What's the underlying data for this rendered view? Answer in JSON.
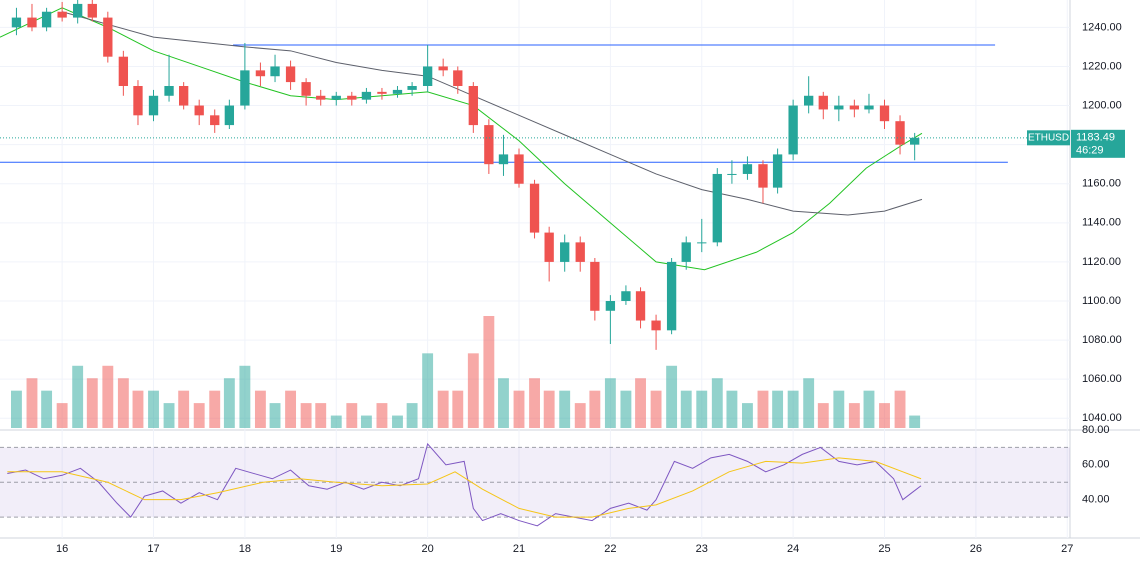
{
  "chart_data": [
    {
      "type": "candlestick",
      "symbol": "ETHUSD",
      "last_price": {
        "value": 1183.49,
        "label": "1183.49"
      },
      "countdown": "46:29",
      "up_color": "#26a69a",
      "down_color": "#ef5350",
      "xlim": [
        15.32,
        27.03
      ],
      "ylim": [
        1034,
        1254
      ],
      "xticks": [
        16,
        17,
        18,
        19,
        20,
        21,
        22,
        23,
        24,
        25,
        26,
        27
      ],
      "yticks": [
        {
          "value": 1040,
          "label": "1040.00"
        },
        {
          "value": 1060,
          "label": "1060.00"
        },
        {
          "value": 1080,
          "label": "1080.00"
        },
        {
          "value": 1100,
          "label": "1100.00"
        },
        {
          "value": 1120,
          "label": "1120.00"
        },
        {
          "value": 1140,
          "label": "1140.00"
        },
        {
          "value": 1160,
          "label": "1160.00"
        },
        {
          "value": 1180,
          "label": "1180.00"
        },
        {
          "value": 1200,
          "label": "1200.00"
        },
        {
          "value": 1220,
          "label": "1220.00"
        },
        {
          "value": 1240,
          "label": "1240.00"
        }
      ],
      "grid": true,
      "x": [
        15.5,
        15.67,
        15.83,
        16,
        16.17,
        16.33,
        16.5,
        16.67,
        16.83,
        17,
        17.17,
        17.33,
        17.5,
        17.67,
        17.83,
        18,
        18.17,
        18.33,
        18.5,
        18.67,
        18.83,
        19,
        19.17,
        19.33,
        19.5,
        19.67,
        19.83,
        20,
        20.17,
        20.33,
        20.5,
        20.67,
        20.83,
        21,
        21.17,
        21.33,
        21.5,
        21.67,
        21.83,
        22,
        22.17,
        22.33,
        22.5,
        22.67,
        22.83,
        23,
        23.17,
        23.33,
        23.5,
        23.67,
        23.83,
        24,
        24.17,
        24.33,
        24.5,
        24.67,
        24.83,
        25,
        25.17,
        25.33
      ],
      "open": [
        1240,
        1245,
        1240,
        1248,
        1245,
        1252,
        1245,
        1225,
        1210,
        1195,
        1205,
        1210,
        1200,
        1195,
        1190,
        1200,
        1218,
        1215,
        1220,
        1212,
        1205,
        1203,
        1205,
        1203,
        1207,
        1206,
        1208,
        1210,
        1220,
        1218,
        1210,
        1190,
        1170,
        1175,
        1160,
        1135,
        1120,
        1130,
        1120,
        1095,
        1100,
        1105,
        1090,
        1085,
        1120,
        1130,
        1130,
        1165,
        1165,
        1170,
        1158,
        1175,
        1200,
        1205,
        1198,
        1200,
        1198,
        1200,
        1192,
        1180
      ],
      "high": [
        1250,
        1252,
        1250,
        1253,
        1256,
        1254,
        1248,
        1228,
        1213,
        1208,
        1226,
        1212,
        1203,
        1198,
        1203,
        1232,
        1222,
        1226,
        1223,
        1214,
        1208,
        1207,
        1207,
        1209,
        1209,
        1210,
        1212,
        1231,
        1224,
        1220,
        1212,
        1193,
        1185,
        1178,
        1162,
        1138,
        1134,
        1133,
        1122,
        1103,
        1108,
        1107,
        1093,
        1122,
        1133,
        1142,
        1168,
        1172,
        1174,
        1172,
        1178,
        1203,
        1215,
        1207,
        1205,
        1203,
        1206,
        1203,
        1195,
        1186
      ],
      "low": [
        1236,
        1238,
        1238,
        1243,
        1242,
        1243,
        1222,
        1205,
        1190,
        1192,
        1202,
        1198,
        1190,
        1186,
        1188,
        1198,
        1210,
        1212,
        1208,
        1200,
        1200,
        1200,
        1200,
        1201,
        1203,
        1204,
        1205,
        1207,
        1215,
        1206,
        1186,
        1165,
        1164,
        1158,
        1132,
        1110,
        1115,
        1115,
        1090,
        1078,
        1098,
        1086,
        1075,
        1083,
        1116,
        1125,
        1128,
        1160,
        1162,
        1150,
        1155,
        1172,
        1196,
        1193,
        1192,
        1194,
        1196,
        1188,
        1175,
        1172
      ],
      "close": [
        1245,
        1240,
        1248,
        1245,
        1252,
        1245,
        1225,
        1210,
        1195,
        1205,
        1210,
        1200,
        1195,
        1190,
        1200,
        1218,
        1215,
        1220,
        1212,
        1205,
        1203,
        1205,
        1203,
        1207,
        1206,
        1208,
        1210,
        1220,
        1218,
        1210,
        1190,
        1170,
        1175,
        1160,
        1135,
        1120,
        1130,
        1120,
        1095,
        1100,
        1105,
        1090,
        1085,
        1120,
        1130,
        1130,
        1165,
        1165,
        1170,
        1158,
        1175,
        1200,
        1205,
        1198,
        1200,
        1198,
        1200,
        1192,
        1180,
        1183.49
      ],
      "volume": [
        3,
        4,
        3,
        2,
        5,
        4,
        5,
        4,
        3,
        3,
        2,
        3,
        2,
        3,
        4,
        5,
        3,
        2,
        3,
        2,
        2,
        1,
        2,
        1,
        2,
        1,
        2,
        6,
        3,
        3,
        6,
        9,
        4,
        3,
        4,
        3,
        3,
        2,
        3,
        4,
        3,
        4,
        3,
        5,
        3,
        3,
        4,
        3,
        2,
        3,
        3,
        3,
        4,
        2,
        3,
        2,
        3,
        2,
        3,
        1
      ],
      "series": [
        {
          "color": "#22c322",
          "x": [
            15.32,
            16,
            16.5,
            17,
            17.5,
            18,
            18.5,
            19,
            19.5,
            20,
            20.5,
            21,
            21.5,
            22,
            22.5,
            23.03,
            23.6,
            24,
            24.4,
            24.8,
            25.2,
            25.41
          ],
          "values": [
            1235,
            1250,
            1240,
            1228,
            1220,
            1212,
            1205,
            1203,
            1205,
            1207,
            1200,
            1182,
            1160,
            1140,
            1120,
            1116,
            1125,
            1135,
            1150,
            1168,
            1180,
            1185.8
          ]
        },
        {
          "color": "#5d606b",
          "x": [
            16,
            17,
            18,
            18.5,
            19,
            19.5,
            20,
            20.5,
            21,
            21.5,
            22,
            22.5,
            23,
            23.5,
            24,
            24.6,
            25,
            25.41
          ],
          "values": [
            1248,
            1235,
            1230,
            1228,
            1222,
            1218,
            1215,
            1205,
            1195,
            1185,
            1175,
            1165,
            1157,
            1152,
            1146,
            1144,
            1146,
            1152
          ]
        }
      ],
      "hlines": [
        {
          "value": 1231,
          "x": [
            17.87,
            26.21
          ],
          "color": "#2962ff"
        },
        {
          "value": 1171,
          "x": [
            15.32,
            26.35
          ],
          "color": "#2962ff"
        }
      ]
    },
    {
      "type": "line",
      "xlim": [
        15.32,
        27.03
      ],
      "ylim": [
        18,
        80
      ],
      "yticks": [
        {
          "value": 40,
          "label": "40.00"
        },
        {
          "value": 60,
          "label": "60.00"
        },
        {
          "value": 80,
          "label": "80.00"
        }
      ],
      "bands": [
        30,
        50,
        70
      ],
      "band_color": "#7e57c2",
      "series": [
        {
          "color": "#7e57c2",
          "x": [
            15.4,
            15.6,
            15.8,
            16,
            16.2,
            16.4,
            16.6,
            16.75,
            16.9,
            17.1,
            17.3,
            17.5,
            17.7,
            17.9,
            18.1,
            18.3,
            18.5,
            18.7,
            18.9,
            19.1,
            19.3,
            19.5,
            19.7,
            19.9,
            20,
            20.2,
            20.4,
            20.5,
            20.6,
            20.8,
            21,
            21.2,
            21.4,
            21.6,
            21.8,
            22,
            22.2,
            22.4,
            22.5,
            22.7,
            22.9,
            23.1,
            23.3,
            23.5,
            23.7,
            23.9,
            24.1,
            24.3,
            24.5,
            24.7,
            24.9,
            25.1,
            25.2,
            25.3,
            25.4
          ],
          "values": [
            55,
            57,
            52,
            54,
            58,
            50,
            38,
            30,
            42,
            45,
            38,
            44,
            40,
            58,
            55,
            52,
            57,
            48,
            46,
            50,
            46,
            50,
            48,
            52,
            72,
            60,
            62,
            35,
            28,
            32,
            28,
            25,
            32,
            30,
            28,
            35,
            38,
            34,
            40,
            62,
            58,
            64,
            66,
            62,
            56,
            60,
            66,
            70,
            62,
            60,
            62,
            52,
            40,
            44,
            48
          ]
        },
        {
          "color": "#f5c518",
          "x": [
            15.4,
            16,
            16.5,
            16.9,
            17.3,
            17.7,
            18.2,
            18.6,
            19,
            19.5,
            20,
            20.3,
            20.6,
            21,
            21.4,
            21.8,
            22.2,
            22.5,
            22.9,
            23.3,
            23.7,
            24.1,
            24.5,
            24.9,
            25.2,
            25.4
          ],
          "values": [
            56,
            56,
            50,
            40,
            40,
            44,
            50,
            52,
            50,
            48,
            49,
            56,
            46,
            35,
            30,
            30,
            35,
            37,
            45,
            56,
            62,
            61,
            64,
            62,
            56,
            52
          ]
        }
      ]
    }
  ]
}
